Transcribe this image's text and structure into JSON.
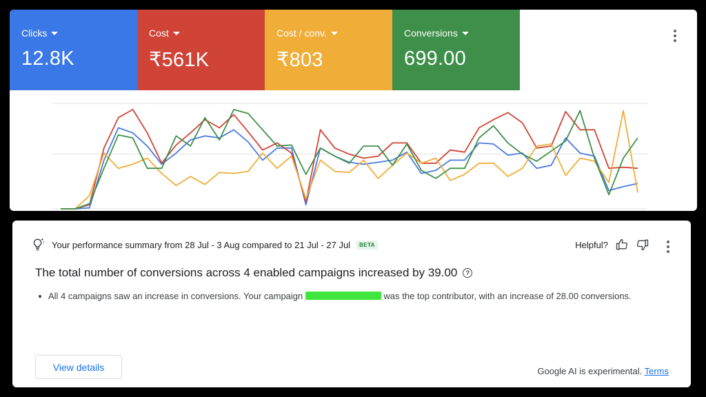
{
  "metrics": [
    {
      "label": "Clicks",
      "value": "12.8K",
      "color": "#3b78e7"
    },
    {
      "label": "Cost",
      "value": "₹561K",
      "color": "#d04437"
    },
    {
      "label": "Cost / conv.",
      "value": "₹803",
      "color": "#f0ad38"
    },
    {
      "label": "Conversions",
      "value": "699.00",
      "color": "#3e8f4a"
    }
  ],
  "chart_data": {
    "type": "line",
    "grid": true,
    "ylim": [
      0,
      100
    ],
    "series": [
      {
        "color": "#4a7ae0",
        "values": [
          0,
          0,
          1,
          48,
          80,
          75,
          62,
          44,
          55,
          68,
          72,
          70,
          78,
          66,
          48,
          60,
          60,
          4,
          60,
          52,
          46,
          44,
          46,
          48,
          56,
          35,
          38,
          48,
          48,
          65,
          64,
          53,
          55,
          40,
          43,
          70,
          55,
          52,
          18,
          22,
          25
        ]
      },
      {
        "color": "#d04437",
        "values": [
          0,
          0,
          4,
          60,
          90,
          98,
          75,
          45,
          63,
          75,
          88,
          80,
          93,
          76,
          58,
          65,
          55,
          7,
          78,
          60,
          54,
          50,
          52,
          65,
          65,
          45,
          45,
          58,
          56,
          80,
          88,
          95,
          85,
          60,
          62,
          96,
          78,
          78,
          40,
          41,
          40
        ]
      },
      {
        "color": "#f0ad38",
        "values": [
          0,
          0,
          13,
          55,
          40,
          44,
          50,
          35,
          23,
          32,
          24,
          36,
          35,
          37,
          55,
          40,
          52,
          10,
          48,
          37,
          36,
          48,
          30,
          43,
          55,
          45,
          50,
          28,
          34,
          45,
          45,
          32,
          40,
          62,
          64,
          33,
          50,
          47,
          26,
          97,
          16
        ]
      },
      {
        "color": "#3e8f4a",
        "values": [
          0,
          0,
          5,
          40,
          73,
          70,
          40,
          40,
          72,
          62,
          90,
          68,
          98,
          94,
          78,
          62,
          63,
          34,
          60,
          52,
          45,
          62,
          62,
          43,
          64,
          38,
          30,
          40,
          40,
          70,
          82,
          65,
          54,
          47,
          57,
          67,
          97,
          50,
          14,
          50,
          70
        ]
      }
    ]
  },
  "summary": {
    "heading": "Your performance summary from 28 Jul - 3 Aug compared to 21 Jul - 27 Jul",
    "badge": "BETA",
    "helpful": "Helpful?",
    "title": "The total number of conversions across 4 enabled campaigns increased by 39.00",
    "bullet_before": "All 4 campaigns saw an increase in conversions. Your campaign",
    "bullet_after": "was the top contributor, with an increase of 28.00 conversions.",
    "button": "View details",
    "footer_text": "Google AI is experimental.",
    "footer_link": "Terms"
  }
}
